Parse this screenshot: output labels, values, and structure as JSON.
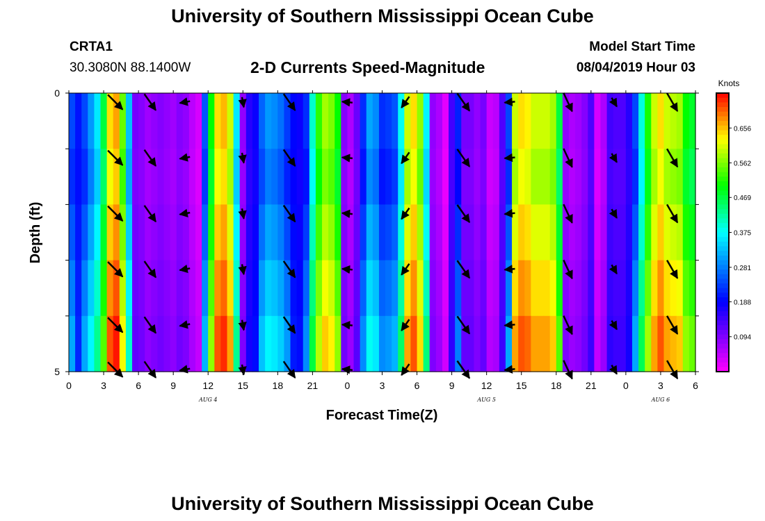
{
  "header": {
    "title": "University of Southern Mississippi Ocean Cube",
    "station": "CRTA1",
    "coords": "30.3080N 88.1400W",
    "chart_title": "2-D Currents Speed-Magnitude",
    "model_label": "Model Start Time",
    "model_time": "08/04/2019 Hour 03",
    "footer_title": "University of Southern Mississippi Ocean Cube"
  },
  "chart_data": {
    "type": "heatmap",
    "title": "2-D Currents Speed-Magnitude",
    "xlabel": "Forecast Time(Z)",
    "ylabel": "Depth (ft)",
    "ylim": [
      0,
      5
    ],
    "y_tick_labels": [
      "0",
      "5"
    ],
    "x_tick_labels": [
      "0",
      "3",
      "6",
      "9",
      "12",
      "15",
      "18",
      "21",
      "0",
      "3",
      "6",
      "9",
      "12",
      "15",
      "18",
      "21",
      "0",
      "3",
      "6"
    ],
    "day_labels": [
      {
        "text": "AUG 4",
        "at_hour": 12
      },
      {
        "text": "AUG 5",
        "at_hour": 36
      },
      {
        "text": "AUG 6",
        "at_hour": 51
      }
    ],
    "x_hours_range": [
      0,
      54
    ],
    "colorbar": {
      "unit": "Knots",
      "range": [
        0,
        0.75
      ],
      "ticks": [
        0.094,
        0.188,
        0.281,
        0.375,
        0.469,
        0.562,
        0.656
      ],
      "tick_labels": [
        "0.094",
        "0.188",
        "0.281",
        "0.375",
        "0.469",
        "0.562",
        "0.656"
      ]
    },
    "speed_by_hour": [
      0.24,
      0.2,
      0.24,
      0.3,
      0.36,
      0.47,
      0.64,
      0.67,
      0.55,
      0.33,
      0.1,
      0.09,
      0.07,
      0.08,
      0.09,
      0.08,
      0.07,
      0.09,
      0.08,
      0.05,
      0.03,
      0.25,
      0.5,
      0.64,
      0.66,
      0.6,
      0.36,
      0.08,
      0.16,
      0.18,
      0.26,
      0.3,
      0.29,
      0.27,
      0.23,
      0.19,
      0.18,
      0.22,
      0.4,
      0.52,
      0.58,
      0.56,
      0.5,
      0.09,
      0.06,
      0.11,
      0.22,
      0.31,
      0.29,
      0.22,
      0.23,
      0.25,
      0.38,
      0.6,
      0.64,
      0.57,
      0.37,
      0.08,
      0.06,
      0.02,
      0.14,
      0.21,
      0.1,
      0.1,
      0.08,
      0.1,
      0.04,
      0.05,
      0.13,
      0.24,
      0.6,
      0.64,
      0.63,
      0.6,
      0.6,
      0.6,
      0.58,
      0.47,
      0.08,
      0.06,
      0.07,
      0.09,
      0.13,
      0.03,
      0.06,
      0.14,
      0.13,
      0.13,
      0.16,
      0.24,
      0.39,
      0.51,
      0.6,
      0.64,
      0.6,
      0.59,
      0.58,
      0.5,
      0.48
    ],
    "depth_modifier": [
      0,
      -0.02,
      0.01,
      0.04,
      0.07
    ],
    "arrow_hours": [
      4,
      7,
      10,
      15,
      19,
      24,
      29,
      34,
      38,
      43,
      47,
      52
    ],
    "arrow_depths_ft": [
      0.2,
      1.2,
      2.2,
      3.2,
      4.2,
      5.0
    ],
    "arrow_dir_deg": [
      135,
      145,
      260,
      170,
      145,
      275,
      215,
      145,
      265,
      155,
      150,
      150
    ],
    "arrow_speed_kn": [
      0.6,
      0.55,
      0.1,
      0.09,
      0.56,
      0.1,
      0.25,
      0.62,
      0.1,
      0.58,
      0.09,
      0.6
    ]
  }
}
